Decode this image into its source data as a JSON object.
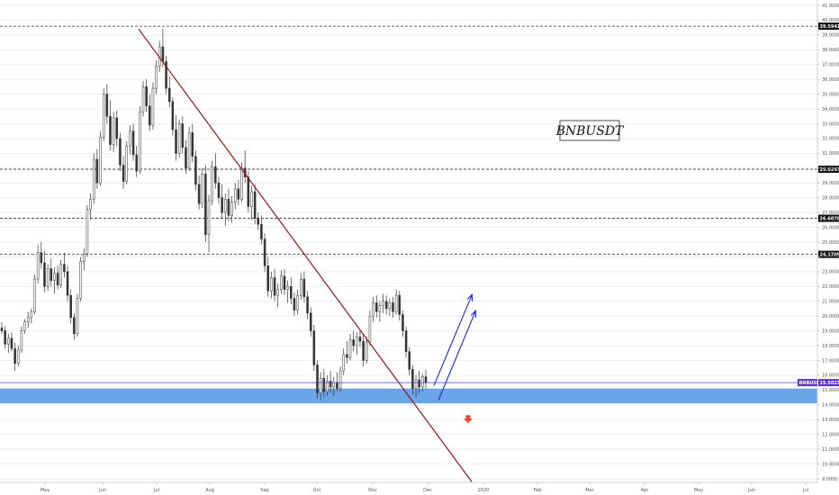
{
  "chart_data": {
    "type": "candlestick",
    "symbol": "BNBUSDT",
    "title": "BNBUSDT",
    "price_tag": {
      "symbol": "BNBUSDT",
      "value": "15.5023",
      "price": 15.5023
    },
    "ylim": [
      9.0,
      41.0
    ],
    "y_ticks": [
      "41.0000",
      "40.0000",
      "39.0000",
      "38.0000",
      "37.0000",
      "36.0000",
      "35.0000",
      "34.0000",
      "33.0000",
      "32.0000",
      "31.0000",
      "30.0000",
      "29.0000",
      "28.0000",
      "27.0000",
      "26.0000",
      "25.0000",
      "24.0000",
      "23.0000",
      "22.0000",
      "21.0000",
      "20.0000",
      "19.0000",
      "18.0000",
      "17.0000",
      "16.0000",
      "15.0000",
      "14.0000",
      "13.0000",
      "12.0000",
      "11.0000",
      "10.0000",
      "9.0000"
    ],
    "x_ticks": [
      "May",
      "Jun",
      "Jul",
      "Aug",
      "Sep",
      "Oct",
      "Nov",
      "Dec",
      "2020",
      "Feb",
      "Mar",
      "Apr",
      "May",
      "Jun",
      "Jul"
    ],
    "horizontal_levels": [
      {
        "value": 39.5941,
        "label": "39.5941"
      },
      {
        "value": 29.9247,
        "label": "29.9247"
      },
      {
        "value": 26.6078,
        "label": "26.6078"
      },
      {
        "value": 24.1709,
        "label": "24.1709"
      }
    ],
    "support_zone": {
      "from": 14.1,
      "to": 15.1,
      "color": "#5b9be6"
    },
    "trendline": {
      "from": [
        "Jun 25",
        39.4
      ],
      "to": [
        "Dec 25",
        8.8
      ],
      "color": "#8b1a1a"
    },
    "projection_arrows_up": [
      {
        "from": [
          "Nov 30",
          15.3
        ],
        "to": [
          "Dec 18",
          21.4
        ]
      },
      {
        "from": [
          "Dec 1",
          14.3
        ],
        "to": [
          "Dec 20",
          20.3
        ]
      }
    ],
    "down_arrow": {
      "at": [
        "Dec 19",
        13.0
      ],
      "color": "#e24a3a"
    },
    "candles": [
      {
        "o": 19.2,
        "h": 19.6,
        "l": 18.8,
        "c": 19.0
      },
      {
        "o": 19.0,
        "h": 19.3,
        "l": 17.8,
        "c": 18.1
      },
      {
        "o": 18.1,
        "h": 18.8,
        "l": 17.5,
        "c": 18.5
      },
      {
        "o": 18.5,
        "h": 18.9,
        "l": 17.6,
        "c": 17.8
      },
      {
        "o": 17.8,
        "h": 18.2,
        "l": 16.3,
        "c": 16.8
      },
      {
        "o": 16.8,
        "h": 18.0,
        "l": 16.6,
        "c": 17.7
      },
      {
        "o": 17.7,
        "h": 19.3,
        "l": 17.5,
        "c": 19.0
      },
      {
        "o": 19.0,
        "h": 19.8,
        "l": 18.8,
        "c": 19.6
      },
      {
        "o": 19.6,
        "h": 20.3,
        "l": 19.2,
        "c": 19.9
      },
      {
        "o": 19.9,
        "h": 20.5,
        "l": 19.5,
        "c": 20.3
      },
      {
        "o": 20.3,
        "h": 22.8,
        "l": 20.1,
        "c": 22.5
      },
      {
        "o": 22.5,
        "h": 24.8,
        "l": 22.2,
        "c": 24.3
      },
      {
        "o": 24.3,
        "h": 25.0,
        "l": 23.2,
        "c": 23.6
      },
      {
        "o": 23.6,
        "h": 24.4,
        "l": 21.6,
        "c": 22.0
      },
      {
        "o": 22.0,
        "h": 23.5,
        "l": 21.7,
        "c": 23.2
      },
      {
        "o": 23.2,
        "h": 23.9,
        "l": 22.0,
        "c": 22.4
      },
      {
        "o": 22.4,
        "h": 23.3,
        "l": 21.5,
        "c": 22.9
      },
      {
        "o": 22.9,
        "h": 23.4,
        "l": 21.8,
        "c": 22.1
      },
      {
        "o": 22.1,
        "h": 23.8,
        "l": 21.9,
        "c": 23.5
      },
      {
        "o": 23.5,
        "h": 24.3,
        "l": 22.6,
        "c": 23.0
      },
      {
        "o": 23.0,
        "h": 23.4,
        "l": 21.0,
        "c": 21.4
      },
      {
        "o": 21.4,
        "h": 21.8,
        "l": 19.5,
        "c": 19.9
      },
      {
        "o": 19.9,
        "h": 20.2,
        "l": 18.4,
        "c": 18.8
      },
      {
        "o": 18.8,
        "h": 21.5,
        "l": 18.6,
        "c": 21.2
      },
      {
        "o": 21.2,
        "h": 24.0,
        "l": 21.0,
        "c": 23.7
      },
      {
        "o": 23.7,
        "h": 24.6,
        "l": 23.1,
        "c": 24.2
      },
      {
        "o": 24.2,
        "h": 27.5,
        "l": 24.0,
        "c": 27.2
      },
      {
        "o": 27.2,
        "h": 28.3,
        "l": 26.5,
        "c": 27.9
      },
      {
        "o": 27.9,
        "h": 31.0,
        "l": 27.6,
        "c": 30.6
      },
      {
        "o": 30.6,
        "h": 31.3,
        "l": 28.6,
        "c": 29.0
      },
      {
        "o": 29.0,
        "h": 32.5,
        "l": 28.8,
        "c": 32.1
      },
      {
        "o": 32.1,
        "h": 35.4,
        "l": 31.8,
        "c": 35.0
      },
      {
        "o": 35.0,
        "h": 35.7,
        "l": 33.0,
        "c": 33.5
      },
      {
        "o": 33.5,
        "h": 34.6,
        "l": 31.2,
        "c": 31.6
      },
      {
        "o": 31.6,
        "h": 33.8,
        "l": 31.1,
        "c": 33.4
      },
      {
        "o": 33.4,
        "h": 33.9,
        "l": 31.5,
        "c": 32.0
      },
      {
        "o": 32.0,
        "h": 32.4,
        "l": 29.8,
        "c": 30.2
      },
      {
        "o": 30.2,
        "h": 30.8,
        "l": 28.6,
        "c": 29.1
      },
      {
        "o": 29.1,
        "h": 31.8,
        "l": 28.9,
        "c": 31.5
      },
      {
        "o": 31.5,
        "h": 32.9,
        "l": 30.9,
        "c": 32.5
      },
      {
        "o": 32.5,
        "h": 33.0,
        "l": 30.5,
        "c": 30.9
      },
      {
        "o": 30.9,
        "h": 31.5,
        "l": 29.4,
        "c": 29.8
      },
      {
        "o": 29.8,
        "h": 34.2,
        "l": 29.6,
        "c": 33.8
      },
      {
        "o": 33.8,
        "h": 35.9,
        "l": 33.5,
        "c": 35.5
      },
      {
        "o": 35.5,
        "h": 36.0,
        "l": 33.8,
        "c": 34.2
      },
      {
        "o": 34.2,
        "h": 35.0,
        "l": 32.5,
        "c": 32.9
      },
      {
        "o": 32.9,
        "h": 35.8,
        "l": 32.6,
        "c": 35.4
      },
      {
        "o": 35.4,
        "h": 37.3,
        "l": 35.0,
        "c": 36.9
      },
      {
        "o": 36.9,
        "h": 38.6,
        "l": 36.5,
        "c": 38.2
      },
      {
        "o": 38.2,
        "h": 39.4,
        "l": 36.8,
        "c": 37.2
      },
      {
        "o": 37.2,
        "h": 37.6,
        "l": 35.0,
        "c": 35.4
      },
      {
        "o": 35.4,
        "h": 36.2,
        "l": 34.1,
        "c": 34.5
      },
      {
        "o": 34.5,
        "h": 34.8,
        "l": 32.2,
        "c": 32.6
      },
      {
        "o": 32.6,
        "h": 33.6,
        "l": 30.5,
        "c": 31.0
      },
      {
        "o": 31.0,
        "h": 33.3,
        "l": 30.7,
        "c": 33.0
      },
      {
        "o": 33.0,
        "h": 33.5,
        "l": 31.0,
        "c": 31.4
      },
      {
        "o": 31.4,
        "h": 31.9,
        "l": 29.6,
        "c": 30.0
      },
      {
        "o": 30.0,
        "h": 32.8,
        "l": 29.8,
        "c": 32.4
      },
      {
        "o": 32.4,
        "h": 33.0,
        "l": 30.4,
        "c": 30.8
      },
      {
        "o": 30.8,
        "h": 31.2,
        "l": 28.5,
        "c": 28.9
      },
      {
        "o": 28.9,
        "h": 29.5,
        "l": 27.2,
        "c": 27.6
      },
      {
        "o": 27.6,
        "h": 30.0,
        "l": 27.3,
        "c": 29.6
      },
      {
        "o": 29.6,
        "h": 30.2,
        "l": 25.0,
        "c": 25.5
      },
      {
        "o": 25.5,
        "h": 28.2,
        "l": 24.3,
        "c": 27.8
      },
      {
        "o": 27.8,
        "h": 30.5,
        "l": 27.5,
        "c": 30.1
      },
      {
        "o": 30.1,
        "h": 31.0,
        "l": 28.6,
        "c": 29.0
      },
      {
        "o": 29.0,
        "h": 29.4,
        "l": 27.6,
        "c": 28.0
      },
      {
        "o": 28.0,
        "h": 28.9,
        "l": 26.6,
        "c": 27.0
      },
      {
        "o": 27.0,
        "h": 28.3,
        "l": 26.1,
        "c": 27.9
      },
      {
        "o": 27.9,
        "h": 28.6,
        "l": 26.4,
        "c": 26.8
      },
      {
        "o": 26.8,
        "h": 28.1,
        "l": 26.3,
        "c": 27.7
      },
      {
        "o": 27.7,
        "h": 29.0,
        "l": 27.2,
        "c": 28.6
      },
      {
        "o": 28.6,
        "h": 29.2,
        "l": 27.5,
        "c": 27.9
      },
      {
        "o": 27.9,
        "h": 30.4,
        "l": 27.7,
        "c": 30.0
      },
      {
        "o": 30.0,
        "h": 31.2,
        "l": 29.0,
        "c": 29.4
      },
      {
        "o": 29.4,
        "h": 29.8,
        "l": 27.0,
        "c": 27.4
      },
      {
        "o": 27.4,
        "h": 28.8,
        "l": 26.5,
        "c": 28.4
      },
      {
        "o": 28.4,
        "h": 28.9,
        "l": 26.2,
        "c": 26.6
      },
      {
        "o": 26.6,
        "h": 27.0,
        "l": 25.8,
        "c": 26.2
      },
      {
        "o": 26.2,
        "h": 26.8,
        "l": 24.8,
        "c": 25.2
      },
      {
        "o": 25.2,
        "h": 25.6,
        "l": 23.0,
        "c": 23.4
      },
      {
        "o": 23.4,
        "h": 24.0,
        "l": 21.3,
        "c": 21.7
      },
      {
        "o": 21.7,
        "h": 23.0,
        "l": 21.2,
        "c": 22.6
      },
      {
        "o": 22.6,
        "h": 23.2,
        "l": 21.0,
        "c": 21.4
      },
      {
        "o": 21.4,
        "h": 22.2,
        "l": 20.6,
        "c": 21.8
      },
      {
        "o": 21.8,
        "h": 23.1,
        "l": 21.5,
        "c": 22.7
      },
      {
        "o": 22.7,
        "h": 23.2,
        "l": 21.4,
        "c": 21.8
      },
      {
        "o": 21.8,
        "h": 22.4,
        "l": 20.9,
        "c": 22.0
      },
      {
        "o": 22.0,
        "h": 22.6,
        "l": 20.8,
        "c": 21.2
      },
      {
        "o": 21.2,
        "h": 21.6,
        "l": 20.0,
        "c": 20.4
      },
      {
        "o": 20.4,
        "h": 21.8,
        "l": 20.1,
        "c": 21.4
      },
      {
        "o": 21.4,
        "h": 22.9,
        "l": 21.1,
        "c": 22.5
      },
      {
        "o": 22.5,
        "h": 23.0,
        "l": 20.9,
        "c": 21.3
      },
      {
        "o": 21.3,
        "h": 21.7,
        "l": 19.8,
        "c": 20.2
      },
      {
        "o": 20.2,
        "h": 20.6,
        "l": 18.6,
        "c": 19.0
      },
      {
        "o": 19.0,
        "h": 19.4,
        "l": 16.3,
        "c": 16.7
      },
      {
        "o": 16.7,
        "h": 17.0,
        "l": 14.4,
        "c": 14.8
      },
      {
        "o": 14.8,
        "h": 16.2,
        "l": 14.3,
        "c": 15.8
      },
      {
        "o": 15.8,
        "h": 16.4,
        "l": 14.5,
        "c": 14.9
      },
      {
        "o": 14.9,
        "h": 16.0,
        "l": 14.6,
        "c": 15.6
      },
      {
        "o": 15.6,
        "h": 16.3,
        "l": 14.8,
        "c": 15.2
      },
      {
        "o": 15.2,
        "h": 15.9,
        "l": 14.6,
        "c": 15.5
      },
      {
        "o": 15.5,
        "h": 16.2,
        "l": 14.9,
        "c": 15.1
      },
      {
        "o": 15.1,
        "h": 16.6,
        "l": 14.9,
        "c": 16.3
      },
      {
        "o": 16.3,
        "h": 17.8,
        "l": 16.0,
        "c": 17.4
      },
      {
        "o": 17.4,
        "h": 18.3,
        "l": 16.8,
        "c": 17.2
      },
      {
        "o": 17.2,
        "h": 18.8,
        "l": 17.0,
        "c": 18.4
      },
      {
        "o": 18.4,
        "h": 19.0,
        "l": 17.6,
        "c": 18.0
      },
      {
        "o": 18.0,
        "h": 18.9,
        "l": 17.4,
        "c": 18.6
      },
      {
        "o": 18.6,
        "h": 19.1,
        "l": 17.9,
        "c": 18.3
      },
      {
        "o": 18.3,
        "h": 18.8,
        "l": 16.6,
        "c": 17.0
      },
      {
        "o": 17.0,
        "h": 18.6,
        "l": 16.8,
        "c": 18.2
      },
      {
        "o": 18.2,
        "h": 20.4,
        "l": 18.0,
        "c": 20.0
      },
      {
        "o": 20.0,
        "h": 21.3,
        "l": 19.6,
        "c": 20.9
      },
      {
        "o": 20.9,
        "h": 21.4,
        "l": 19.9,
        "c": 20.3
      },
      {
        "o": 20.3,
        "h": 21.0,
        "l": 19.6,
        "c": 20.7
      },
      {
        "o": 20.7,
        "h": 21.5,
        "l": 20.2,
        "c": 21.0
      },
      {
        "o": 21.0,
        "h": 21.4,
        "l": 20.1,
        "c": 20.5
      },
      {
        "o": 20.5,
        "h": 21.2,
        "l": 20.0,
        "c": 20.9
      },
      {
        "o": 20.9,
        "h": 21.3,
        "l": 19.9,
        "c": 20.3
      },
      {
        "o": 20.3,
        "h": 21.8,
        "l": 20.1,
        "c": 21.4
      },
      {
        "o": 21.4,
        "h": 21.7,
        "l": 19.7,
        "c": 20.1
      },
      {
        "o": 20.1,
        "h": 20.4,
        "l": 18.6,
        "c": 19.0
      },
      {
        "o": 19.0,
        "h": 19.3,
        "l": 17.2,
        "c": 17.6
      },
      {
        "o": 17.6,
        "h": 17.9,
        "l": 16.0,
        "c": 16.4
      },
      {
        "o": 16.4,
        "h": 16.7,
        "l": 14.7,
        "c": 15.1
      },
      {
        "o": 15.1,
        "h": 16.0,
        "l": 14.5,
        "c": 15.7
      },
      {
        "o": 15.7,
        "h": 16.3,
        "l": 14.8,
        "c": 15.2
      },
      {
        "o": 15.2,
        "h": 16.1,
        "l": 14.9,
        "c": 15.9
      },
      {
        "o": 15.9,
        "h": 16.4,
        "l": 15.1,
        "c": 15.5
      }
    ]
  }
}
